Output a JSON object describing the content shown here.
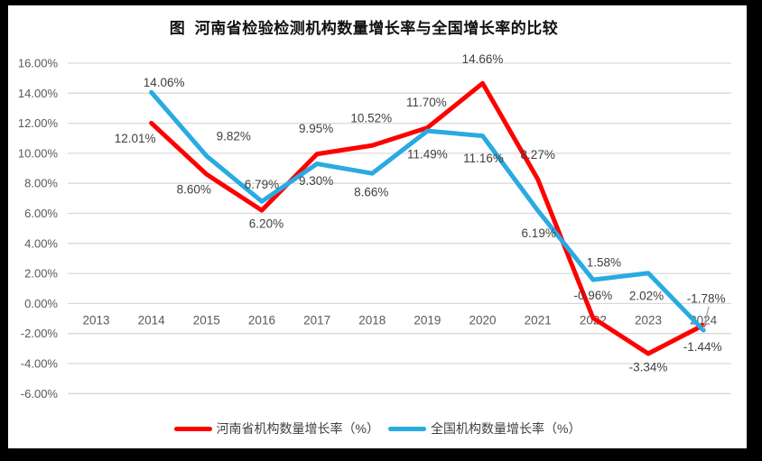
{
  "chart_data": {
    "type": "line",
    "title": "图  河南省检验检测机构数量增长率与全国增长率的比较",
    "categories": [
      "2013",
      "2014",
      "2015",
      "2016",
      "2017",
      "2018",
      "2019",
      "2020",
      "2021",
      "2022",
      "2023",
      "2024"
    ],
    "series": [
      {
        "name": "河南省机构数量增长率（%）",
        "color": "#FE0000",
        "values": [
          null,
          12.01,
          8.6,
          6.2,
          9.95,
          10.52,
          11.7,
          14.66,
          8.27,
          -0.96,
          -3.34,
          -1.44
        ],
        "data_labels": [
          null,
          "12.01%",
          "8.60%",
          "6.20%",
          "9.95%",
          "10.52%",
          "11.70%",
          "14.66%",
          "8.27%",
          "-0.96%",
          "-3.34%",
          "-1.44%"
        ],
        "label_offsets": [
          null,
          [
            -18,
            17
          ],
          [
            -14,
            17
          ],
          [
            5,
            15
          ],
          [
            -1,
            -28
          ],
          [
            -1,
            -30
          ],
          [
            -1,
            -28
          ],
          [
            0,
            -27
          ],
          [
            0,
            -27
          ],
          [
            0,
            -25
          ],
          [
            0,
            15
          ],
          [
            -1,
            24
          ]
        ]
      },
      {
        "name": "全国机构数量增长率（%）",
        "color": "#29ABE2",
        "values": [
          null,
          14.06,
          9.82,
          6.79,
          9.3,
          8.66,
          11.49,
          11.16,
          6.19,
          1.58,
          2.02,
          -1.78
        ],
        "data_labels": [
          null,
          "14.06%",
          "9.82%",
          "6.79%",
          "9.30%",
          "8.66%",
          "11.49%",
          "11.16%",
          "6.19%",
          "1.58%",
          "2.02%",
          "-1.78%"
        ],
        "label_offsets": [
          null,
          [
            14,
            -11
          ],
          [
            30,
            -22
          ],
          [
            0,
            -19
          ],
          [
            -1,
            19
          ],
          [
            -1,
            21
          ],
          [
            0,
            26
          ],
          [
            1,
            25
          ],
          [
            1,
            25
          ],
          [
            12,
            -19
          ],
          [
            -2,
            25
          ],
          [
            3,
            -35
          ]
        ]
      }
    ],
    "y_axis": {
      "min": -6,
      "max": 16,
      "step": 2,
      "tick_labels": [
        "16.00%",
        "14.00%",
        "12.00%",
        "10.00%",
        "8.00%",
        "6.00%",
        "4.00%",
        "2.00%",
        "0.00%",
        "-2.00%",
        "-4.00%",
        "-6.00%"
      ]
    },
    "x_axis": {
      "labels_between": [
        "0.00%",
        "-2.00%"
      ]
    },
    "grid": true,
    "legend_position": "bottom",
    "annotations": [
      {
        "type": "leader-line",
        "x1": 776,
        "y1": 334,
        "x2": 770,
        "y2": 359,
        "color": "#A6A6A6"
      }
    ],
    "style_colors": {
      "gridline": "#D9D9D9",
      "axis_text": "#595959",
      "data_label_text": "#404040",
      "title_text": "#111111"
    }
  }
}
